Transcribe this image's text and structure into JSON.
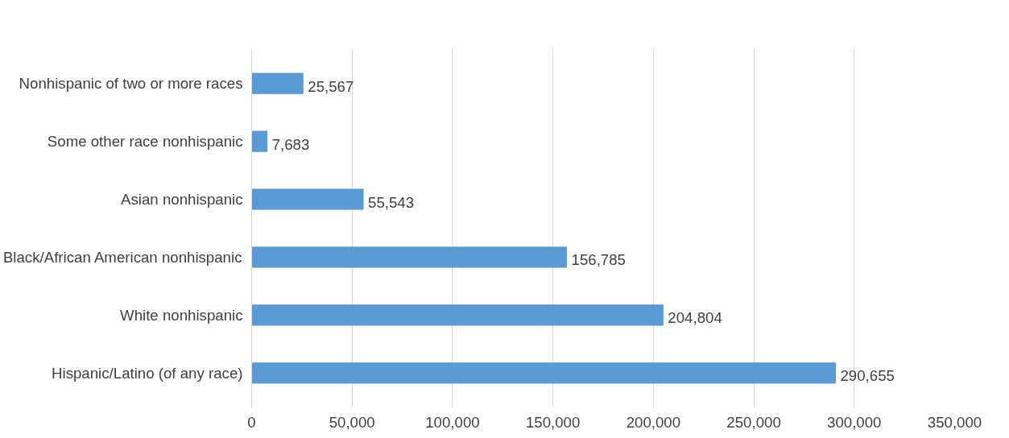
{
  "chart_data": {
    "type": "bar",
    "orientation": "horizontal",
    "categories": [
      "Nonhispanic of two or more races",
      "Some other race nonhispanic",
      "Asian nonhispanic",
      "Black/African American nonhispanic",
      "White nonhispanic",
      "Hispanic/Latino (of any race)"
    ],
    "values": [
      25567,
      7683,
      55543,
      156785,
      204804,
      290655
    ],
    "value_labels": [
      "25,567",
      "7,683",
      "55,543",
      "156,785",
      "204,804",
      "290,655"
    ],
    "color": "#5b9bd5",
    "grid": "x",
    "xlim": [
      0,
      350000
    ],
    "xticks": [
      0,
      {
        "value": 50000,
        "label": "50,000"
      },
      {
        "value": 100000,
        "label": "100,000"
      },
      {
        "value": 150000,
        "label": "150,000"
      },
      {
        "value": 200000,
        "label": "200,000"
      },
      {
        "value": 250000,
        "label": "250,000"
      },
      {
        "value": 300000,
        "label": "300,000"
      },
      {
        "value": 350000,
        "label": "350,000"
      }
    ]
  }
}
